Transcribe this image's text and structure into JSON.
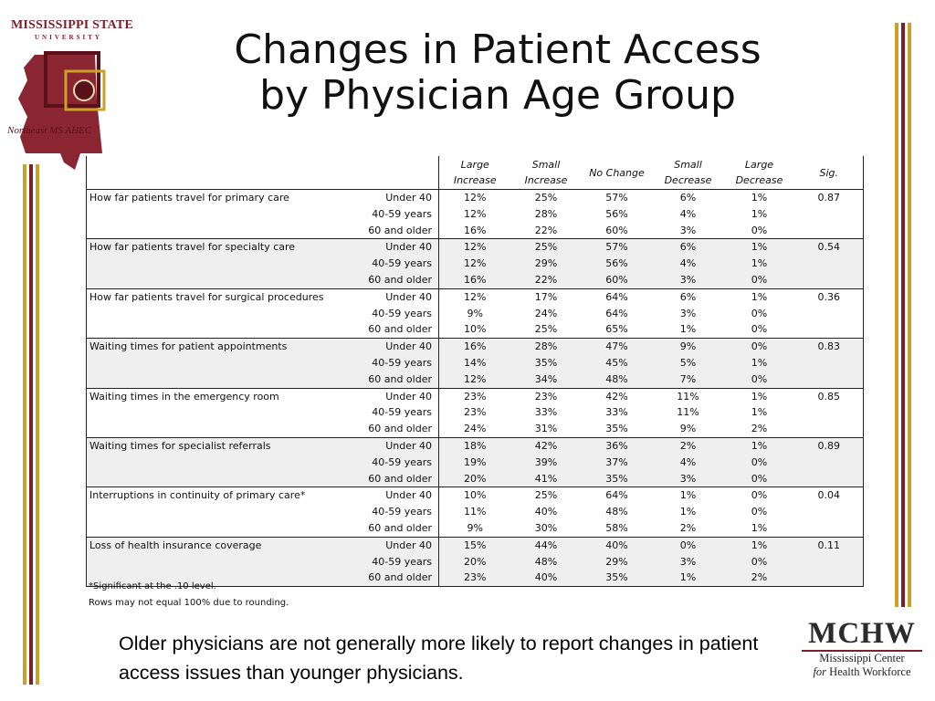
{
  "title": {
    "line1": "Changes in Patient Access",
    "line2": "by Physician Age Group"
  },
  "logo": {
    "university": "MISSISSIPPI STATE",
    "university_sub": "UNIVERSITY",
    "ahec_name": "Northeast MS AHEC"
  },
  "table": {
    "columns": [
      "Large Increase",
      "Small Increase",
      "No Change",
      "Small Decrease",
      "Large Decrease",
      "Sig."
    ],
    "col_lines": [
      [
        "Large",
        "Increase"
      ],
      [
        "Small",
        "Increase"
      ],
      [
        "No Change",
        ""
      ],
      [
        "Small",
        "Decrease"
      ],
      [
        "Large",
        "Decrease"
      ],
      [
        "Sig.",
        ""
      ]
    ],
    "groups": [
      {
        "item": "How far patients travel for primary care",
        "sig": "0.87",
        "rows": [
          {
            "age": "Under 40",
            "values": [
              "12%",
              "25%",
              "57%",
              "6%",
              "1%"
            ]
          },
          {
            "age": "40-59 years",
            "values": [
              "12%",
              "28%",
              "56%",
              "4%",
              "1%"
            ]
          },
          {
            "age": "60 and older",
            "values": [
              "16%",
              "22%",
              "60%",
              "3%",
              "0%"
            ]
          }
        ]
      },
      {
        "item": "How far patients travel for specialty care",
        "sig": "0.54",
        "rows": [
          {
            "age": "Under 40",
            "values": [
              "12%",
              "25%",
              "57%",
              "6%",
              "1%"
            ]
          },
          {
            "age": "40-59 years",
            "values": [
              "12%",
              "29%",
              "56%",
              "4%",
              "1%"
            ]
          },
          {
            "age": "60 and older",
            "values": [
              "16%",
              "22%",
              "60%",
              "3%",
              "0%"
            ]
          }
        ]
      },
      {
        "item": "How far patients travel for surgical procedures",
        "sig": "0.36",
        "rows": [
          {
            "age": "Under 40",
            "values": [
              "12%",
              "17%",
              "64%",
              "6%",
              "1%"
            ]
          },
          {
            "age": "40-59 years",
            "values": [
              "9%",
              "24%",
              "64%",
              "3%",
              "0%"
            ]
          },
          {
            "age": "60 and older",
            "values": [
              "10%",
              "25%",
              "65%",
              "1%",
              "0%"
            ]
          }
        ]
      },
      {
        "item": "Waiting times for patient appointments",
        "sig": "0.83",
        "rows": [
          {
            "age": "Under 40",
            "values": [
              "16%",
              "28%",
              "47%",
              "9%",
              "0%"
            ]
          },
          {
            "age": "40-59 years",
            "values": [
              "14%",
              "35%",
              "45%",
              "5%",
              "1%"
            ]
          },
          {
            "age": "60 and older",
            "values": [
              "12%",
              "34%",
              "48%",
              "7%",
              "0%"
            ]
          }
        ]
      },
      {
        "item": "Waiting times in the emergency room",
        "sig": "0.85",
        "rows": [
          {
            "age": "Under 40",
            "values": [
              "23%",
              "23%",
              "42%",
              "11%",
              "1%"
            ]
          },
          {
            "age": "40-59 years",
            "values": [
              "23%",
              "33%",
              "33%",
              "11%",
              "1%"
            ]
          },
          {
            "age": "60 and older",
            "values": [
              "24%",
              "31%",
              "35%",
              "9%",
              "2%"
            ]
          }
        ]
      },
      {
        "item": "Waiting times for specialist referrals",
        "sig": "0.89",
        "rows": [
          {
            "age": "Under 40",
            "values": [
              "18%",
              "42%",
              "36%",
              "2%",
              "1%"
            ]
          },
          {
            "age": "40-59 years",
            "values": [
              "19%",
              "39%",
              "37%",
              "4%",
              "0%"
            ]
          },
          {
            "age": "60 and older",
            "values": [
              "20%",
              "41%",
              "35%",
              "3%",
              "0%"
            ]
          }
        ]
      },
      {
        "item": "Interruptions in continuity of primary care*",
        "sig": "0.04",
        "rows": [
          {
            "age": "Under 40",
            "values": [
              "10%",
              "25%",
              "64%",
              "1%",
              "0%"
            ]
          },
          {
            "age": "40-59 years",
            "values": [
              "11%",
              "40%",
              "48%",
              "1%",
              "0%"
            ]
          },
          {
            "age": "60 and older",
            "values": [
              "9%",
              "30%",
              "58%",
              "2%",
              "1%"
            ]
          }
        ]
      },
      {
        "item": "Loss of health insurance coverage",
        "sig": "0.11",
        "rows": [
          {
            "age": "Under 40",
            "values": [
              "15%",
              "44%",
              "40%",
              "0%",
              "1%"
            ]
          },
          {
            "age": "40-59 years",
            "values": [
              "20%",
              "48%",
              "29%",
              "3%",
              "0%"
            ]
          },
          {
            "age": "60 and older",
            "values": [
              "23%",
              "40%",
              "35%",
              "1%",
              "2%"
            ]
          }
        ]
      }
    ]
  },
  "notes": {
    "significance": "*Significant at the .10 level.",
    "rounding": "Rows may not equal 100% due to rounding."
  },
  "summary": "Older physicians are not generally more likely to report changes in patient access issues than younger physicians.",
  "mchw": {
    "acronym": "MCHW",
    "line1": "Mississippi Center",
    "line2_prefix": "for",
    "line2_rest": "Health Workforce"
  },
  "colors": {
    "maroon": "#7a1f2b",
    "gold": "#c9a227",
    "row_shade": "#efefef"
  }
}
